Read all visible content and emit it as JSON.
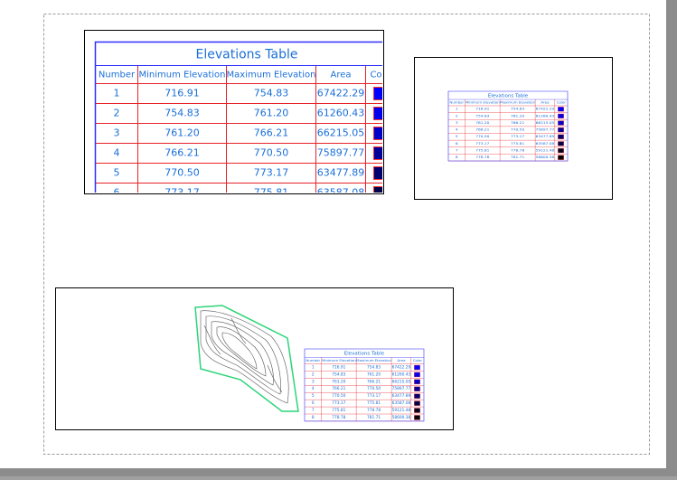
{
  "table": {
    "title": "Elevations Table",
    "headers": [
      "Number",
      "Minimum Elevation",
      "Maximum Elevation",
      "Area",
      "Color"
    ],
    "rows": [
      [
        "1",
        "716.91",
        "754.83",
        "67422.29"
      ],
      [
        "2",
        "754.83",
        "761.20",
        "61260.43"
      ],
      [
        "3",
        "761.20",
        "766.21",
        "66215.05"
      ],
      [
        "4",
        "766.21",
        "770.50",
        "75897.77"
      ],
      [
        "5",
        "770.50",
        "773.17",
        "63477.89"
      ],
      [
        "6",
        "773.17",
        "775.81",
        "63587.08"
      ],
      [
        "7",
        "775.81",
        "778.78",
        "59121.48"
      ],
      [
        "8",
        "778.78",
        "781.71",
        "58600.38"
      ]
    ],
    "colors": [
      "#0000ff",
      "#0000ee",
      "#0000c8",
      "#00009a",
      "#000070",
      "#00004a",
      "#000020",
      "#000008"
    ]
  }
}
